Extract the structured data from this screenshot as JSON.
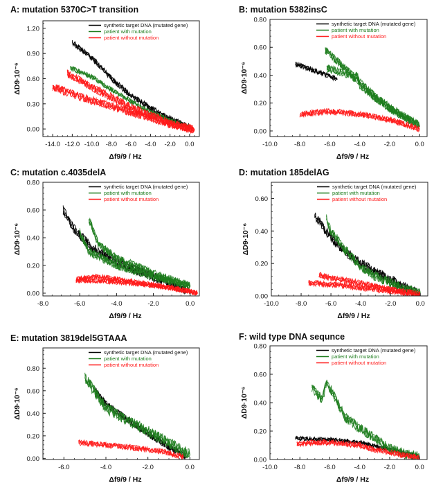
{
  "colors": {
    "synthetic": "#000000",
    "with": "#1e7d1e",
    "without": "#ff1a1a"
  },
  "legend": [
    "synthetic target DNA (mutated gene)",
    "patient with mutation",
    "patient without mutation"
  ],
  "chart_data": [
    {
      "type": "line",
      "title": "A: mutation 5370C>T transition",
      "xlabel": "Δf9/9 / Hz",
      "ylabel": "ΔD9·10⁻⁶",
      "xlim": [
        -15,
        1
      ],
      "ylim": [
        -0.09,
        1.29
      ],
      "xticks": [
        -14,
        -12,
        -10,
        -8,
        -6,
        -4,
        -2,
        0
      ],
      "xtick_labels": [
        "-14.0",
        "-12.0",
        "-10.0",
        "-8.0",
        "-6.0",
        "-4.0",
        "-2.0",
        "0.0"
      ],
      "yticks": [
        0,
        0.3,
        0.6,
        0.9,
        1.2
      ],
      "ytick_labels": [
        "0.00",
        "0.30",
        "0.60",
        "0.90",
        "1.20"
      ],
      "legend_placement": "top-right",
      "series": [
        {
          "name": "synthetic target DNA (mutated gene)",
          "spread": 0.035,
          "traces": [
            [
              [
                -12,
                1.03
              ],
              [
                -10,
                0.85
              ],
              [
                -8,
                0.6
              ],
              [
                -6,
                0.4
              ],
              [
                -4,
                0.25
              ],
              [
                -2,
                0.12
              ],
              [
                0,
                0.03
              ]
            ]
          ]
        },
        {
          "name": "patient with mutation",
          "spread": 0.03,
          "traces": [
            [
              [
                -12.2,
                0.73
              ],
              [
                -10,
                0.62
              ],
              [
                -8,
                0.47
              ],
              [
                -6,
                0.33
              ],
              [
                -4,
                0.2
              ],
              [
                -2,
                0.1
              ],
              [
                0,
                0.02
              ]
            ]
          ]
        },
        {
          "name": "patient without mutation",
          "spread": 0.05,
          "traces": [
            [
              [
                -12.5,
                0.66
              ],
              [
                -10,
                0.5
              ],
              [
                -8,
                0.38
              ],
              [
                -6,
                0.26
              ],
              [
                -4,
                0.16
              ],
              [
                -2,
                0.07
              ],
              [
                0.5,
                -0.01
              ]
            ],
            [
              [
                -14,
                0.5
              ],
              [
                -12,
                0.42
              ],
              [
                -10,
                0.34
              ],
              [
                -8,
                0.27
              ],
              [
                -6,
                0.2
              ],
              [
                -4,
                0.13
              ],
              [
                -2,
                0.06
              ],
              [
                0.5,
                -0.01
              ]
            ]
          ]
        }
      ]
    },
    {
      "type": "line",
      "title": "B: mutation 5382insC",
      "xlabel": "Δf9/9 / Hz",
      "ylabel": "ΔD9·10⁻⁶",
      "xlim": [
        -10,
        0.5
      ],
      "ylim": [
        -0.04,
        0.8
      ],
      "xticks": [
        -10,
        -8,
        -6,
        -4,
        -2,
        0
      ],
      "xtick_labels": [
        "-10.0",
        "-8.0",
        "-6.0",
        "-4.0",
        "-2.0",
        "0.0"
      ],
      "yticks": [
        0,
        0.2,
        0.4,
        0.6,
        0.8
      ],
      "ytick_labels": [
        "0.00",
        "0.20",
        "0.40",
        "0.60",
        "0.80"
      ],
      "legend_placement": "top-right",
      "series": [
        {
          "name": "synthetic target DNA (mutated gene)",
          "spread": 0.018,
          "traces": [
            [
              [
                -8.3,
                0.48
              ],
              [
                -7,
                0.43
              ],
              [
                -6,
                0.39
              ],
              [
                -5.5,
                0.37
              ]
            ]
          ]
        },
        {
          "name": "patient with mutation",
          "spread": 0.03,
          "traces": [
            [
              [
                -6.3,
                0.58
              ],
              [
                -5,
                0.45
              ],
              [
                -4,
                0.35
              ],
              [
                -3,
                0.25
              ],
              [
                -2,
                0.17
              ],
              [
                -1,
                0.1
              ],
              [
                0,
                0.03
              ]
            ],
            [
              [
                -6.2,
                0.45
              ],
              [
                -5,
                0.41
              ],
              [
                -4.3,
                0.38
              ],
              [
                -4.2,
                0.41
              ],
              [
                -4,
                0.33
              ],
              [
                -3,
                0.24
              ],
              [
                -2,
                0.16
              ],
              [
                0,
                0.04
              ]
            ]
          ]
        },
        {
          "name": "patient without mutation",
          "spread": 0.022,
          "traces": [
            [
              [
                -8,
                0.12
              ],
              [
                -7,
                0.13
              ],
              [
                -6,
                0.14
              ],
              [
                -5,
                0.13
              ],
              [
                -4,
                0.12
              ],
              [
                -3,
                0.1
              ],
              [
                -2,
                0.08
              ],
              [
                -1,
                0.05
              ],
              [
                0,
                0.01
              ]
            ]
          ]
        }
      ]
    },
    {
      "type": "line",
      "title": "C: mutation c.4035delA",
      "xlabel": "Δf9/9 / Hz",
      "ylabel": "ΔD9·10⁻⁶",
      "xlim": [
        -8,
        0.5
      ],
      "ylim": [
        -0.02,
        0.8
      ],
      "xticks": [
        -8,
        -6,
        -4,
        -2,
        0
      ],
      "xtick_labels": [
        "-8.0",
        "-6.0",
        "-4.0",
        "-2.0",
        "0.0"
      ],
      "yticks": [
        0,
        0.2,
        0.4,
        0.6,
        0.8
      ],
      "ytick_labels": [
        "0.00",
        "0.20",
        "0.40",
        "0.60",
        "0.80"
      ],
      "legend_placement": "top-right",
      "series": [
        {
          "name": "synthetic target DNA (mutated gene)",
          "spread": 0.035,
          "traces": [
            [
              [
                -6.9,
                0.6
              ],
              [
                -6.5,
                0.5
              ],
              [
                -6,
                0.42
              ],
              [
                -5.5,
                0.35
              ],
              [
                -5,
                0.3
              ],
              [
                -4,
                0.23
              ],
              [
                -3,
                0.17
              ],
              [
                -2,
                0.12
              ],
              [
                -1,
                0.07
              ],
              [
                -0.2,
                0.02
              ]
            ]
          ]
        },
        {
          "name": "patient with mutation",
          "spread": 0.03,
          "traces": [
            [
              [
                -6,
                0.44
              ],
              [
                -5.5,
                0.3
              ],
              [
                -4,
                0.2
              ],
              [
                -2,
                0.12
              ],
              [
                0,
                0.05
              ]
            ],
            [
              [
                -5.5,
                0.53
              ],
              [
                -5,
                0.36
              ],
              [
                -4,
                0.25
              ],
              [
                -3,
                0.2
              ],
              [
                -2,
                0.14
              ],
              [
                -1,
                0.1
              ],
              [
                0,
                0.05
              ]
            ]
          ]
        },
        {
          "name": "patient without mutation",
          "spread": 0.018,
          "traces": [
            [
              [
                -6.2,
                0.1
              ],
              [
                -5,
                0.12
              ],
              [
                -4,
                0.1
              ],
              [
                -2,
                0.06
              ],
              [
                0.4,
                0.0
              ]
            ],
            [
              [
                -6.2,
                0.09
              ],
              [
                -5,
                0.09
              ],
              [
                -3,
                0.07
              ],
              [
                -1,
                0.04
              ],
              [
                0.4,
                0.0
              ]
            ]
          ]
        }
      ]
    },
    {
      "type": "line",
      "title": "D: mutation 185delAG",
      "xlabel": "Δf9/9 / Hz",
      "ylabel": "ΔD9·10⁻⁶",
      "xlim": [
        -10,
        0.5
      ],
      "ylim": [
        0,
        0.7
      ],
      "xticks": [
        -10,
        -8,
        -6,
        -4,
        -2,
        0
      ],
      "xtick_labels": [
        "-10.0",
        "-8.0",
        "-6.0",
        "-4.0",
        "-2.0",
        "0.0"
      ],
      "yticks": [
        0,
        0.2,
        0.4,
        0.6
      ],
      "ytick_labels": [
        "0.00",
        "0.20",
        "0.40",
        "0.60"
      ],
      "legend_placement": "top-right",
      "series": [
        {
          "name": "synthetic target DNA (mutated gene)",
          "spread": 0.03,
          "traces": [
            [
              [
                -7.1,
                0.5
              ],
              [
                -6.5,
                0.42
              ],
              [
                -6,
                0.36
              ],
              [
                -5,
                0.27
              ],
              [
                -4,
                0.2
              ],
              [
                -3,
                0.15
              ],
              [
                -2,
                0.1
              ],
              [
                -1,
                0.05
              ],
              [
                0,
                0.02
              ]
            ]
          ]
        },
        {
          "name": "patient with mutation",
          "spread": 0.03,
          "traces": [
            [
              [
                -6.3,
                0.48
              ],
              [
                -6,
                0.4
              ],
              [
                -5,
                0.28
              ],
              [
                -4,
                0.18
              ],
              [
                -3,
                0.12
              ],
              [
                -2,
                0.08
              ],
              [
                -1,
                0.04
              ],
              [
                0,
                0.02
              ]
            ]
          ]
        },
        {
          "name": "patient without mutation",
          "spread": 0.018,
          "traces": [
            [
              [
                -7.5,
                0.08
              ],
              [
                -6,
                0.07
              ],
              [
                -4,
                0.05
              ],
              [
                -2,
                0.03
              ],
              [
                0,
                0.0
              ]
            ],
            [
              [
                -6.8,
                0.13
              ],
              [
                -6,
                0.11
              ],
              [
                -4,
                0.08
              ],
              [
                -2,
                0.04
              ],
              [
                0,
                0.01
              ]
            ]
          ]
        }
      ]
    },
    {
      "type": "line",
      "title": "E: mutation 3819del5GTAAA",
      "xlabel": "Δf9/9 / Hz",
      "ylabel": "ΔD9·10⁻⁶",
      "xlim": [
        -7,
        0.45
      ],
      "ylim": [
        -0.01,
        0.98
      ],
      "xticks": [
        -6,
        -4,
        -2,
        0
      ],
      "xtick_labels": [
        "-6.0",
        "-4.0",
        "-2.0",
        "0.0"
      ],
      "yticks": [
        0,
        0.2,
        0.4,
        0.6,
        0.8
      ],
      "ytick_labels": [
        "0.00",
        "0.20",
        "0.40",
        "0.60",
        "0.80"
      ],
      "legend_placement": "top-right",
      "series": [
        {
          "name": "synthetic target DNA (mutated gene)",
          "spread": 0.03,
          "traces": [
            [
              [
                -4.5,
                0.6
              ],
              [
                -4,
                0.48
              ],
              [
                -3,
                0.35
              ],
              [
                -2,
                0.22
              ],
              [
                -1,
                0.1
              ],
              [
                -0.2,
                0.02
              ]
            ]
          ]
        },
        {
          "name": "patient with mutation",
          "spread": 0.05,
          "traces": [
            [
              [
                -5,
                0.72
              ],
              [
                -4.5,
                0.58
              ],
              [
                -4,
                0.45
              ],
              [
                -3,
                0.34
              ],
              [
                -2,
                0.24
              ],
              [
                -1,
                0.14
              ],
              [
                0,
                0.03
              ]
            ]
          ]
        },
        {
          "name": "patient without mutation",
          "spread": 0.025,
          "traces": [
            [
              [
                -5.3,
                0.14
              ],
              [
                -4,
                0.12
              ],
              [
                -3,
                0.1
              ],
              [
                -2,
                0.08
              ],
              [
                -1,
                0.05
              ],
              [
                -0.3,
                0.01
              ]
            ]
          ]
        }
      ]
    },
    {
      "type": "line",
      "title": "F: wild type DNA sequnce",
      "xlabel": "Δf9/9 / Hz",
      "ylabel": "ΔD9·10⁻⁶",
      "xlim": [
        -10,
        0.5
      ],
      "ylim": [
        0,
        0.8
      ],
      "xticks": [
        -10,
        -8,
        -6,
        -4,
        -2,
        0
      ],
      "xtick_labels": [
        "-10.0",
        "-8.0",
        "-6.0",
        "-4.0",
        "-2.0",
        "0.0"
      ],
      "yticks": [
        0,
        0.2,
        0.4,
        0.6,
        0.8
      ],
      "ytick_labels": [
        "0.00",
        "0.20",
        "0.40",
        "0.60",
        "0.80"
      ],
      "legend_placement": "top-right",
      "series": [
        {
          "name": "synthetic target DNA (mutated gene)",
          "spread": 0.015,
          "traces": [
            [
              [
                -8.3,
                0.15
              ],
              [
                -6,
                0.14
              ],
              [
                -4,
                0.12
              ],
              [
                -2,
                0.07
              ],
              [
                0,
                0.02
              ]
            ]
          ]
        },
        {
          "name": "patient with mutation",
          "spread": 0.035,
          "traces": [
            [
              [
                -7.2,
                0.5
              ],
              [
                -6.5,
                0.42
              ],
              [
                -6.2,
                0.55
              ],
              [
                -5.5,
                0.4
              ],
              [
                -5,
                0.3
              ],
              [
                -4,
                0.22
              ],
              [
                -3,
                0.15
              ],
              [
                -2,
                0.08
              ],
              [
                -1,
                0.04
              ],
              [
                0,
                0.02
              ]
            ]
          ]
        },
        {
          "name": "patient without mutation",
          "spread": 0.02,
          "traces": [
            [
              [
                -8.2,
                0.11
              ],
              [
                -7,
                0.12
              ],
              [
                -6,
                0.12
              ],
              [
                -4,
                0.1
              ],
              [
                -3,
                0.07
              ],
              [
                -2,
                0.05
              ],
              [
                -1,
                0.03
              ],
              [
                0,
                0.01
              ]
            ]
          ]
        }
      ]
    }
  ]
}
